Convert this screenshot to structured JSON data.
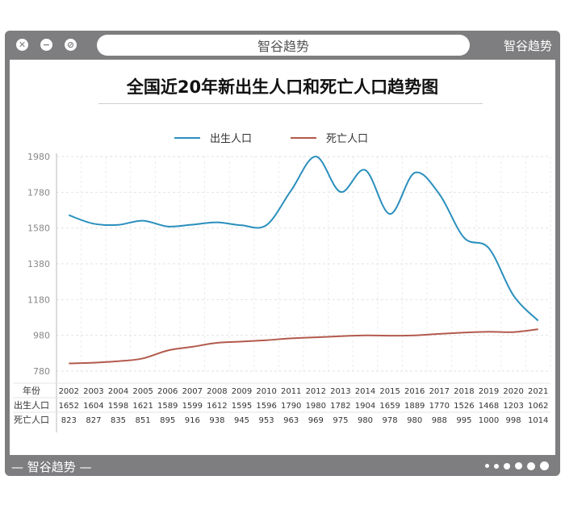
{
  "window": {
    "title": "智谷趋势",
    "brand_top_right": "智谷趋势",
    "brand_bottom_left": "— 智谷趋势 —"
  },
  "colors": {
    "births": "#2a8fbd",
    "deaths": "#b35a4c",
    "frame": "#7e7e80"
  },
  "icons": [
    "close-icon",
    "minimize-icon",
    "block-icon"
  ],
  "chart_data": {
    "type": "line",
    "title": "全国近20年新出生人口和死亡人口趋势图",
    "legend_position": "top",
    "x": [
      "2002",
      "2003",
      "2004",
      "2005",
      "2006",
      "2007",
      "2008",
      "2009",
      "2010",
      "2011",
      "2012",
      "2013",
      "2014",
      "2015",
      "2016",
      "2017",
      "2018",
      "2019",
      "2020",
      "2021"
    ],
    "series": [
      {
        "name": "出生人口",
        "values": [
          1652,
          1604,
          1598,
          1621,
          1589,
          1599,
          1612,
          1595,
          1596,
          1790,
          1980,
          1782,
          1904,
          1659,
          1889,
          1770,
          1526,
          1468,
          1203,
          1062
        ]
      },
      {
        "name": "死亡人口",
        "values": [
          823,
          827,
          835,
          851,
          895,
          916,
          938,
          945,
          953,
          963,
          969,
          975,
          980,
          978,
          980,
          988,
          995,
          1000,
          998,
          1014
        ]
      }
    ],
    "y_ticks": [
      780,
      980,
      1180,
      1380,
      1580,
      1780,
      1980
    ],
    "ylim": [
      780,
      1980
    ],
    "grid": true,
    "table_row_labels": [
      "年份",
      "出生人口",
      "死亡人口"
    ]
  }
}
